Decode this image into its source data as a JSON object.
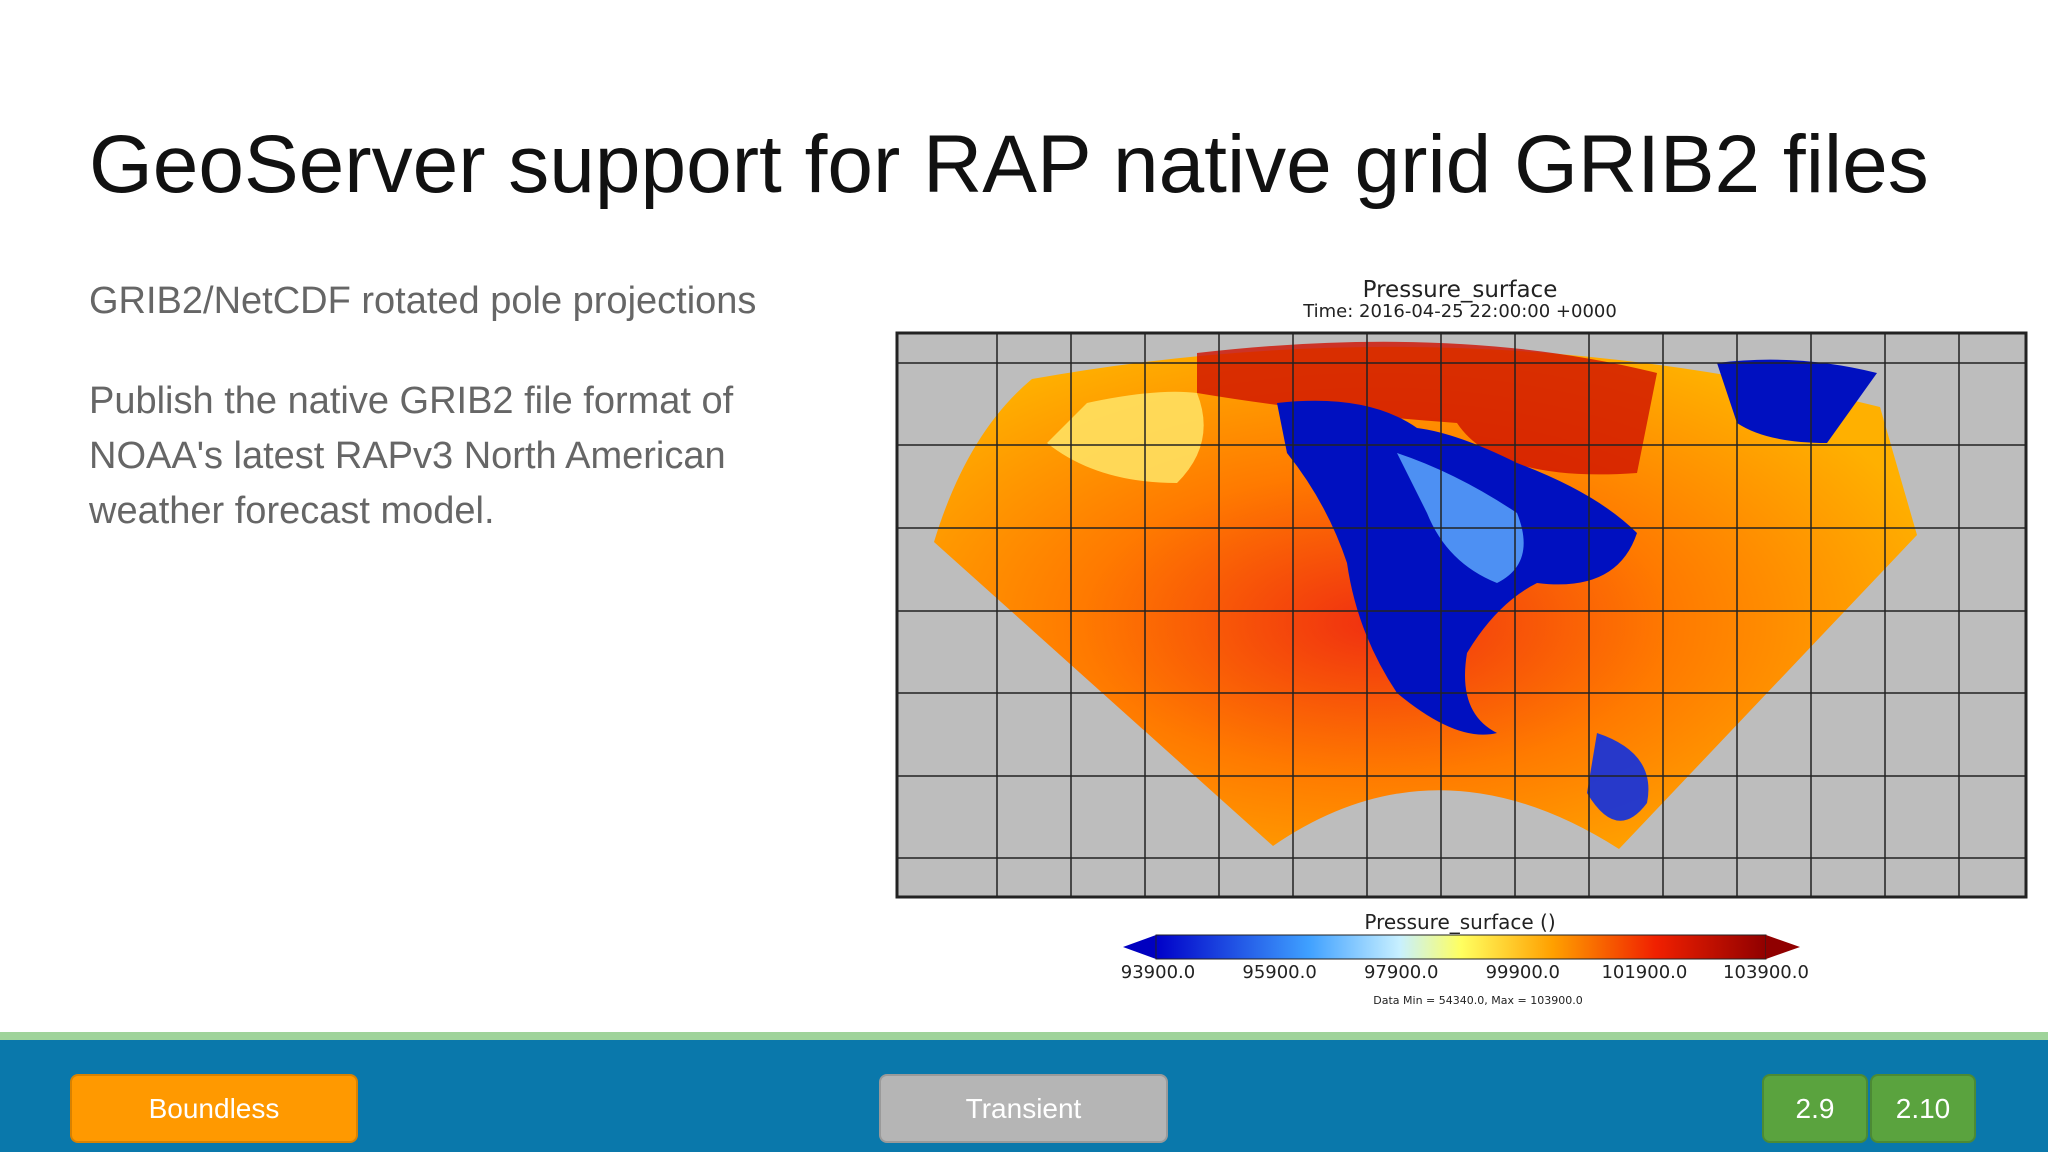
{
  "header": {
    "title": "GeoServer support for RAP native grid GRIB2 files"
  },
  "body": {
    "subtitle": "GRIB2/NetCDF rotated pole projections",
    "paragraph": "Publish the native GRIB2 file format of NOAA's latest RAPv3 North American weather forecast model."
  },
  "figure": {
    "title": "Pressure_surface",
    "time": "Time: 2016-04-25 22:00:00 +0000",
    "colorbar_label": "Pressure_surface ()",
    "colorbar_ticks": [
      "93900.0",
      "95900.0",
      "97900.0",
      "99900.0",
      "101900.0",
      "103900.0"
    ],
    "note": "Data Min = 54340.0, Max = 103900.0"
  },
  "footer": {
    "buttons": [
      "Boundless",
      "Transient",
      "2.9",
      "2.10"
    ]
  }
}
